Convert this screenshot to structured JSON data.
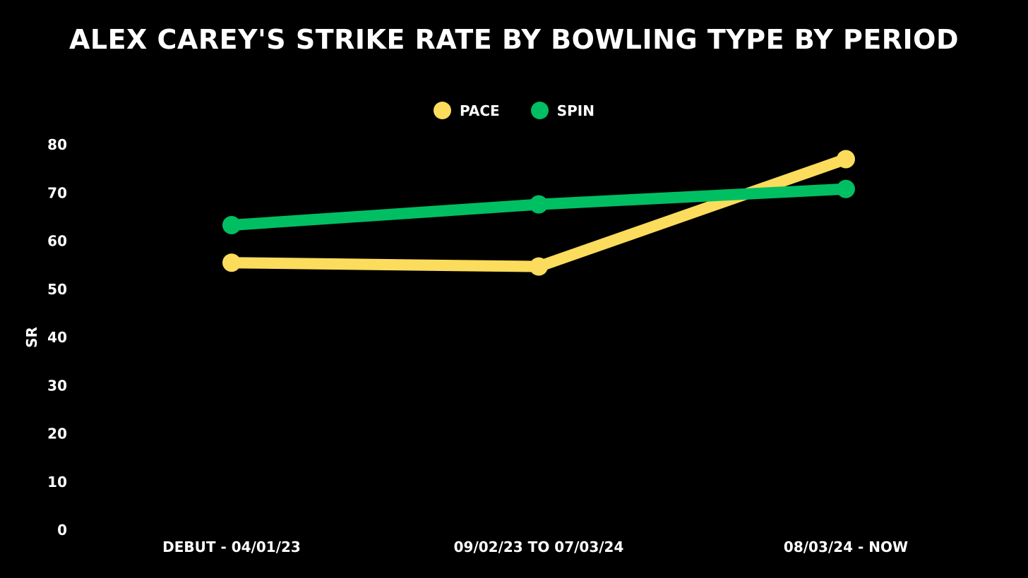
{
  "chart_data": {
    "type": "line",
    "title": "ALEX CAREY'S STRIKE RATE BY BOWLING TYPE BY PERIOD",
    "xlabel": "",
    "ylabel": "SR",
    "categories": [
      "DEBUT - 04/01/23",
      "09/02/23 TO 07/03/24",
      "08/03/24 - NOW"
    ],
    "ylim": [
      0,
      80
    ],
    "yticks": [
      "0",
      "10",
      "20",
      "30",
      "40",
      "50",
      "60",
      "70",
      "80"
    ],
    "series": [
      {
        "name": "PACE",
        "color": "#FCDC5C",
        "values": [
          55.5,
          54.7,
          77.0
        ]
      },
      {
        "name": "SPIN",
        "color": "#00BF63",
        "values": [
          63.3,
          67.6,
          70.8
        ]
      }
    ],
    "legend_position": "top-center",
    "grid": false
  }
}
